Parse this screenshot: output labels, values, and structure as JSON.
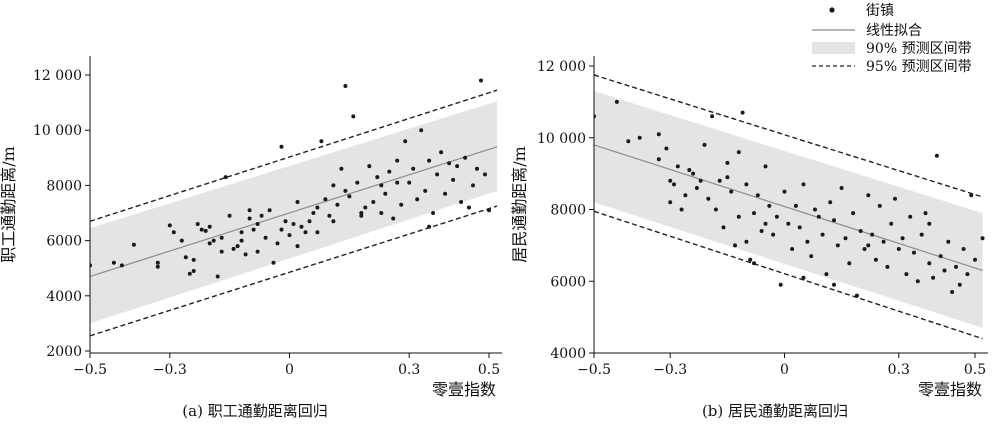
{
  "legend": {
    "placement": "top-right",
    "entries": [
      {
        "key": "points",
        "label": "街镇"
      },
      {
        "key": "fit",
        "label": "线性拟合"
      },
      {
        "key": "pi90",
        "label": "90% 预测区间带"
      },
      {
        "key": "pi95",
        "label": "95% 预测区间带"
      }
    ]
  },
  "colors": {
    "point": "#1a1a1a",
    "fit_line": "#8c8c8c",
    "band90": "#e3e5e4",
    "band95": "#222222",
    "axis": "#111111"
  },
  "chart_data": [
    {
      "type": "scatter",
      "caption": "(a) 职工通勤距离回归",
      "xlabel": "零壹指数",
      "ylabel": "职工通勤距离/m",
      "xlim": [
        -0.5,
        0.52
      ],
      "ylim": [
        2000,
        12500
      ],
      "xticks": [
        -0.5,
        -0.3,
        0,
        0.3,
        0.5
      ],
      "xtick_labels": [
        "−0.5",
        "−0.3",
        "0",
        "0.3",
        "0.5"
      ],
      "yticks": [
        2000,
        4000,
        6000,
        8000,
        10000,
        12000
      ],
      "ytick_labels": [
        "2000",
        "4000",
        "6000",
        "8000",
        "10 000",
        "12 000"
      ],
      "fit": {
        "x": [
          -0.5,
          0.52
        ],
        "y": [
          4700,
          9400
        ]
      },
      "band90": {
        "x": [
          -0.5,
          0.52
        ],
        "lower": [
          3000,
          7800
        ],
        "upper": [
          6450,
          11050
        ]
      },
      "band95": {
        "x": [
          -0.5,
          0.52
        ],
        "lower": [
          2550,
          7250
        ],
        "upper": [
          6700,
          11450
        ]
      },
      "points": [
        [
          -0.5,
          5100
        ],
        [
          -0.44,
          5200
        ],
        [
          -0.42,
          5100
        ],
        [
          -0.39,
          5850
        ],
        [
          -0.33,
          5050
        ],
        [
          -0.33,
          5200
        ],
        [
          -0.3,
          6550
        ],
        [
          -0.29,
          6300
        ],
        [
          -0.27,
          6000
        ],
        [
          -0.26,
          5400
        ],
        [
          -0.25,
          4800
        ],
        [
          -0.24,
          5300
        ],
        [
          -0.24,
          4900
        ],
        [
          -0.23,
          6600
        ],
        [
          -0.22,
          6400
        ],
        [
          -0.21,
          6350
        ],
        [
          -0.2,
          6500
        ],
        [
          -0.19,
          6000
        ],
        [
          -0.18,
          4700
        ],
        [
          -0.17,
          5600
        ],
        [
          -0.17,
          6100
        ],
        [
          -0.16,
          8300
        ],
        [
          -0.15,
          6900
        ],
        [
          -0.14,
          5700
        ],
        [
          -0.13,
          5800
        ],
        [
          -0.12,
          6000
        ],
        [
          -0.12,
          6300
        ],
        [
          -0.11,
          5500
        ],
        [
          -0.1,
          6800
        ],
        [
          -0.1,
          7100
        ],
        [
          -0.09,
          6400
        ],
        [
          -0.08,
          6600
        ],
        [
          -0.08,
          5600
        ],
        [
          -0.07,
          6900
        ],
        [
          -0.06,
          6100
        ],
        [
          -0.05,
          7100
        ],
        [
          -0.04,
          5200
        ],
        [
          -0.03,
          5900
        ],
        [
          -0.02,
          6400
        ],
        [
          -0.01,
          6700
        ],
        [
          0,
          6200
        ],
        [
          0.01,
          6600
        ],
        [
          0.02,
          5800
        ],
        [
          0.03,
          6500
        ],
        [
          0.04,
          6300
        ],
        [
          0.05,
          6700
        ],
        [
          0.06,
          7000
        ],
        [
          0.07,
          6300
        ],
        [
          0.07,
          7200
        ],
        [
          0.08,
          9600
        ],
        [
          0.09,
          7500
        ],
        [
          0.1,
          6900
        ],
        [
          0.11,
          8000
        ],
        [
          0.11,
          6700
        ],
        [
          0.12,
          7300
        ],
        [
          0.13,
          8600
        ],
        [
          0.14,
          11600
        ],
        [
          0.14,
          7800
        ],
        [
          0.15,
          7600
        ],
        [
          0.16,
          10500
        ],
        [
          0.17,
          8100
        ],
        [
          0.18,
          6900
        ],
        [
          0.19,
          7200
        ],
        [
          0.2,
          8700
        ],
        [
          0.21,
          7400
        ],
        [
          0.22,
          8300
        ],
        [
          0.23,
          8000
        ],
        [
          0.23,
          7000
        ],
        [
          0.24,
          7700
        ],
        [
          0.25,
          8500
        ],
        [
          0.26,
          6800
        ],
        [
          0.27,
          8900
        ],
        [
          0.28,
          7300
        ],
        [
          0.29,
          9600
        ],
        [
          0.3,
          8100
        ],
        [
          0.31,
          8600
        ],
        [
          0.32,
          7500
        ],
        [
          0.33,
          10000
        ],
        [
          0.34,
          7800
        ],
        [
          0.35,
          8900
        ],
        [
          0.36,
          7000
        ],
        [
          0.37,
          8400
        ],
        [
          0.38,
          9200
        ],
        [
          0.39,
          7700
        ],
        [
          0.4,
          8800
        ],
        [
          0.41,
          8200
        ],
        [
          0.42,
          8700
        ],
        [
          0.43,
          7400
        ],
        [
          0.44,
          9000
        ],
        [
          0.45,
          7200
        ],
        [
          0.46,
          8000
        ],
        [
          0.47,
          8600
        ],
        [
          0.48,
          11800
        ],
        [
          0.49,
          8400
        ],
        [
          0.5,
          7100
        ],
        [
          -0.02,
          9400
        ],
        [
          0.02,
          7400
        ],
        [
          0.18,
          7000
        ],
        [
          0.35,
          6500
        ],
        [
          -0.2,
          5900
        ],
        [
          0.27,
          8100
        ]
      ]
    },
    {
      "type": "scatter",
      "caption": "(b) 居民通勤距离回归",
      "xlabel": "零壹指数",
      "ylabel": "居民通勤距离/m",
      "xlim": [
        -0.5,
        0.52
      ],
      "ylim": [
        4000,
        12000
      ],
      "xticks": [
        -0.5,
        -0.3,
        0,
        0.3,
        0.5
      ],
      "xtick_labels": [
        "−0.5",
        "−0.3",
        "0",
        "0.3",
        "0.5"
      ],
      "yticks": [
        4000,
        6000,
        8000,
        10000,
        12000
      ],
      "ytick_labels": [
        "4000",
        "6000",
        "8000",
        "10 000",
        "12 000"
      ],
      "fit": {
        "x": [
          -0.5,
          0.52
        ],
        "y": [
          9800,
          6300
        ]
      },
      "band90": {
        "x": [
          -0.5,
          0.52
        ],
        "lower": [
          8200,
          4700
        ],
        "upper": [
          11300,
          7900
        ]
      },
      "band95": {
        "x": [
          -0.5,
          0.52
        ],
        "lower": [
          7950,
          4400
        ],
        "upper": [
          11750,
          8350
        ]
      },
      "points": [
        [
          -0.5,
          10600
        ],
        [
          -0.44,
          11000
        ],
        [
          -0.41,
          9900
        ],
        [
          -0.38,
          10000
        ],
        [
          -0.33,
          9400
        ],
        [
          -0.33,
          10100
        ],
        [
          -0.31,
          9700
        ],
        [
          -0.3,
          8800
        ],
        [
          -0.29,
          8700
        ],
        [
          -0.28,
          9200
        ],
        [
          -0.27,
          8000
        ],
        [
          -0.26,
          8400
        ],
        [
          -0.25,
          9100
        ],
        [
          -0.24,
          9000
        ],
        [
          -0.23,
          8600
        ],
        [
          -0.22,
          8800
        ],
        [
          -0.21,
          9800
        ],
        [
          -0.2,
          8300
        ],
        [
          -0.19,
          10600
        ],
        [
          -0.18,
          8000
        ],
        [
          -0.17,
          8800
        ],
        [
          -0.16,
          7500
        ],
        [
          -0.15,
          9300
        ],
        [
          -0.14,
          8500
        ],
        [
          -0.13,
          7000
        ],
        [
          -0.12,
          9600
        ],
        [
          -0.12,
          7800
        ],
        [
          -0.11,
          10700
        ],
        [
          -0.1,
          7100
        ],
        [
          -0.1,
          8700
        ],
        [
          -0.09,
          6600
        ],
        [
          -0.08,
          7900
        ],
        [
          -0.08,
          6500
        ],
        [
          -0.07,
          8400
        ],
        [
          -0.06,
          7400
        ],
        [
          -0.05,
          9200
        ],
        [
          -0.04,
          8100
        ],
        [
          -0.03,
          7300
        ],
        [
          -0.02,
          7800
        ],
        [
          -0.01,
          5900
        ],
        [
          0,
          8500
        ],
        [
          0.01,
          7600
        ],
        [
          0.02,
          6900
        ],
        [
          0.03,
          8100
        ],
        [
          0.04,
          7500
        ],
        [
          0.05,
          8700
        ],
        [
          0.06,
          7100
        ],
        [
          0.07,
          6700
        ],
        [
          0.08,
          8000
        ],
        [
          0.09,
          7800
        ],
        [
          0.1,
          7300
        ],
        [
          0.11,
          6200
        ],
        [
          0.12,
          8200
        ],
        [
          0.13,
          7700
        ],
        [
          0.14,
          7000
        ],
        [
          0.15,
          8600
        ],
        [
          0.16,
          7200
        ],
        [
          0.17,
          6500
        ],
        [
          0.18,
          7900
        ],
        [
          0.19,
          5600
        ],
        [
          0.2,
          7400
        ],
        [
          0.21,
          6900
        ],
        [
          0.22,
          8400
        ],
        [
          0.23,
          7300
        ],
        [
          0.24,
          6600
        ],
        [
          0.25,
          8100
        ],
        [
          0.26,
          7100
        ],
        [
          0.27,
          6400
        ],
        [
          0.28,
          7600
        ],
        [
          0.29,
          8300
        ],
        [
          0.3,
          6900
        ],
        [
          0.31,
          7200
        ],
        [
          0.32,
          6200
        ],
        [
          0.33,
          7800
        ],
        [
          0.34,
          6800
        ],
        [
          0.35,
          6000
        ],
        [
          0.36,
          7300
        ],
        [
          0.37,
          7900
        ],
        [
          0.38,
          6500
        ],
        [
          0.39,
          6100
        ],
        [
          0.4,
          9500
        ],
        [
          0.41,
          6700
        ],
        [
          0.42,
          6300
        ],
        [
          0.43,
          7100
        ],
        [
          0.44,
          5700
        ],
        [
          0.45,
          6400
        ],
        [
          0.46,
          5900
        ],
        [
          0.47,
          6900
        ],
        [
          0.48,
          6200
        ],
        [
          0.49,
          8400
        ],
        [
          0.5,
          6600
        ],
        [
          0.52,
          7200
        ],
        [
          -0.3,
          8200
        ],
        [
          0.05,
          6100
        ],
        [
          0.22,
          7000
        ],
        [
          -0.15,
          8900
        ],
        [
          0.13,
          5900
        ],
        [
          -0.05,
          7600
        ],
        [
          0.38,
          7600
        ]
      ]
    }
  ]
}
